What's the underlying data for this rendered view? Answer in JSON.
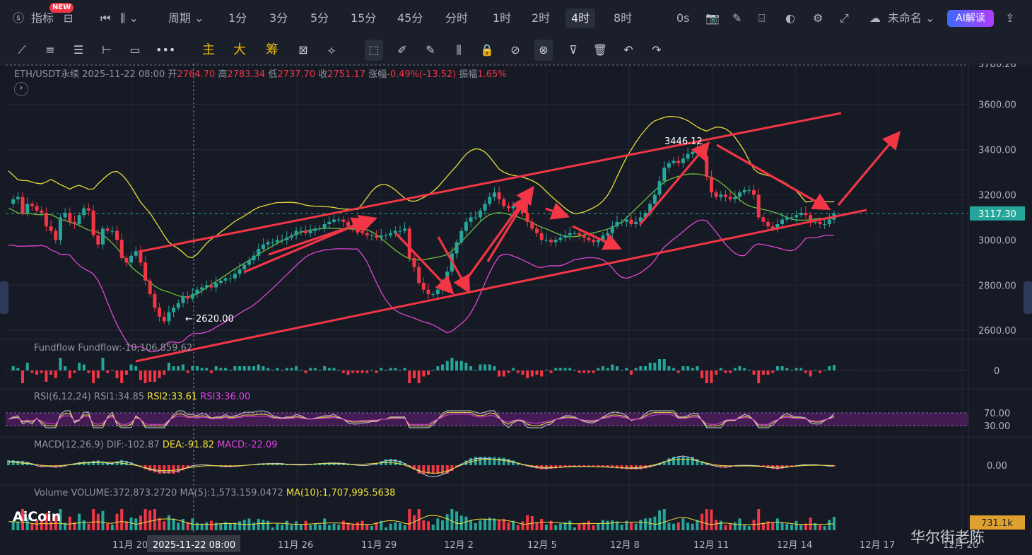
{
  "topbar": {
    "indicators_label": "指标",
    "new_badge": "NEW",
    "period_label": "周期",
    "intervals": [
      "1分",
      "3分",
      "5分",
      "15分",
      "45分",
      "分时",
      "1时",
      "2时",
      "4时",
      "8时"
    ],
    "active_interval": "4时",
    "countdown": "0s",
    "layout_name": "未命名",
    "ai_button": "AI解读"
  },
  "drawing_tools": {
    "main": "主",
    "big": "大",
    "chip": "筹"
  },
  "symbol_info": {
    "symbol": "ETH/USDT永续",
    "datetime": "2025-11-22 08:00",
    "open_label": "开",
    "open": "2764.70",
    "high_label": "高",
    "high": "2783.34",
    "low_label": "低",
    "low": "2737.70",
    "close_label": "收",
    "close": "2751.17",
    "change_label": "涨幅",
    "change": "-0.49%(-13.52)",
    "amplitude_label": "振幅",
    "amplitude": "1.65%"
  },
  "panes": {
    "fundflow": {
      "name": "Fundflow",
      "value_text": "Fundflow:-10,106,859.62",
      "zero_label": "0"
    },
    "rsi": {
      "name": "RSI(6,12,24)",
      "rsi1": "RSI1:34.85",
      "rsi2": "RSI2:33.61",
      "rsi3": "RSI3:36.00",
      "upper": "70.00",
      "lower": "30.00"
    },
    "macd": {
      "name": "MACD(12,26,9)",
      "dif": "DIF:-102.87",
      "dea": "DEA:-91.82",
      "macd": "MACD:-22.09",
      "zero_label": "0.00"
    },
    "volume": {
      "name": "Volume",
      "volume": "VOLUME:372,873.2720",
      "ma5": "MA(5):1,573,159.0472",
      "ma10": "MA(10):1,707,995.5638",
      "last_label": "731.1k"
    }
  },
  "chart_data": {
    "type": "candlestick",
    "symbol": "ETH/USDT永续",
    "interval": "4时",
    "y_axis_labels": [
      "3780.26",
      "3600.00",
      "3400.00",
      "3200.00",
      "3000.00",
      "2800.00",
      "2600.00"
    ],
    "ylim": [
      2560,
      3780
    ],
    "x_axis_labels": [
      "11月 20",
      "11月 26",
      "11月 29",
      "12月 2",
      "12月 5",
      "12月 8",
      "12月 11",
      "12月 14",
      "12月 17",
      "12月 20"
    ],
    "crosshair_label": "2025-11-22 08:00",
    "current_price": "3117.30",
    "annotations": {
      "high": "3446.12",
      "low": "2620.00"
    },
    "trend_channel": {
      "upper": [
        [
          2900,
          3580
        ]
      ],
      "lower": [
        [
          2580,
          3110
        ]
      ]
    },
    "price_path": [
      3160,
      3180,
      3190,
      3120,
      3160,
      3150,
      3130,
      3120,
      3060,
      3040,
      3000,
      3100,
      3120,
      3080,
      3070,
      3110,
      3140,
      3130,
      3020,
      2980,
      3050,
      3040,
      3040,
      3000,
      2920,
      2900,
      2930,
      2950,
      2900,
      2820,
      2760,
      2700,
      2660,
      2640,
      2680,
      2700,
      2720,
      2750,
      2740,
      2760,
      2780,
      2790,
      2800,
      2790,
      2810,
      2820,
      2830,
      2830,
      2850,
      2870,
      2890,
      2910,
      2930,
      2960,
      2980,
      2990,
      2990,
      3000,
      3000,
      3010,
      3020,
      3040,
      3040,
      3030,
      3040,
      3050,
      3050,
      3070,
      3080,
      3090,
      3090,
      3080,
      3060,
      3050,
      3040,
      3030,
      3020,
      3020,
      3010,
      3020,
      3020,
      3030,
      3040,
      3040,
      3050,
      2920,
      2880,
      2810,
      2780,
      2760,
      2760,
      2780,
      2810,
      2860,
      2940,
      2990,
      3040,
      3080,
      3100,
      3100,
      3130,
      3160,
      3190,
      3210,
      3180,
      3150,
      3140,
      3150,
      3140,
      3120,
      3080,
      3050,
      3030,
      3000,
      3000,
      2990,
      3000,
      3010,
      3020,
      3030,
      3030,
      3020,
      3010,
      3000,
      2990,
      3000,
      3020,
      3030,
      3060,
      3080,
      3080,
      3090,
      3070,
      3080,
      3100,
      3120,
      3160,
      3200,
      3260,
      3320,
      3340,
      3350,
      3340,
      3360,
      3380,
      3390,
      3410,
      3370,
      3280,
      3210,
      3190,
      3200,
      3190,
      3180,
      3190,
      3210,
      3220,
      3220,
      3200,
      3100,
      3080,
      3060,
      3050,
      3070,
      3090,
      3100,
      3100,
      3110,
      3120,
      3110,
      3080,
      3080,
      3070,
      3070,
      3090,
      3117
    ],
    "moving_averages": [
      "yellow",
      "green",
      "pink"
    ],
    "arrows": [
      {
        "from": [
          3035,
          2930
        ],
        "to": [
          3070,
          3080
        ]
      },
      {
        "from": [
          3080,
          2930
        ],
        "to": [
          3000,
          2790
        ]
      },
      {
        "from": [
          3000,
          3030
        ],
        "to": [
          3050,
          2880
        ]
      },
      {
        "from": [
          3100,
          2880
        ],
        "to": [
          3200,
          3210
        ]
      },
      {
        "from": [
          3190,
          3030
        ],
        "to": [
          3080,
          2960
        ]
      },
      {
        "from": [
          3100,
          3090
        ],
        "to": [
          3370,
          3410
        ]
      },
      {
        "from": [
          3370,
          3110
        ],
        "to": [
          3230,
          3290
        ]
      }
    ]
  },
  "watermarks": {
    "logo": "AiCoin",
    "author": "华尔街老陈"
  },
  "colors": {
    "up": "#26a69a",
    "down": "#f23645",
    "bg": "#161a25",
    "channel": "#f23645",
    "accent": "#f0b90b"
  }
}
